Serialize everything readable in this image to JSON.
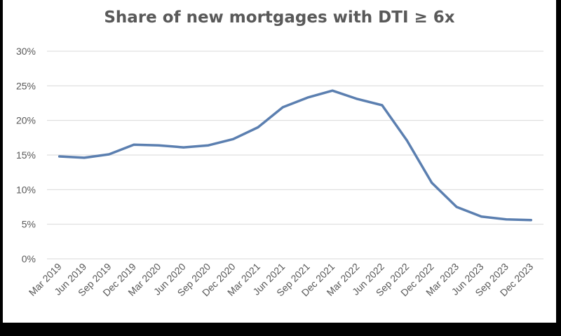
{
  "chart_data": {
    "type": "line",
    "title": "Share of new mortgages with DTI ≥ 6x",
    "xlabel": "",
    "ylabel": "",
    "categories": [
      "Mar 2019",
      "Jun 2019",
      "Sep 2019",
      "Dec 2019",
      "Mar 2020",
      "Jun 2020",
      "Sep 2020",
      "Dec 2020",
      "Mar 2021",
      "Jun 2021",
      "Sep 2021",
      "Dec 2021",
      "Mar 2022",
      "Jun 2022",
      "Sep 2022",
      "Dec 2022",
      "Mar 2023",
      "Jun 2023",
      "Sep 2023",
      "Dec 2023"
    ],
    "series": [
      {
        "values": [
          14.8,
          14.6,
          15.1,
          16.5,
          16.4,
          16.1,
          16.4,
          17.3,
          19.0,
          21.9,
          23.3,
          24.3,
          23.1,
          22.2,
          17.1,
          11.0,
          7.5,
          6.1,
          5.7,
          5.6
        ]
      }
    ],
    "ylim": [
      0,
      30
    ],
    "yticks": [
      0,
      5,
      10,
      15,
      20,
      25,
      30
    ],
    "ytick_labels": [
      "0%",
      "5%",
      "10%",
      "15%",
      "20%",
      "25%",
      "30%"
    ],
    "grid": true,
    "legend": "none",
    "colors": {
      "line": "#5b7fb0",
      "grid": "#d9d9d9",
      "text": "#595959",
      "background": "#ffffff",
      "border": "#000000"
    }
  }
}
